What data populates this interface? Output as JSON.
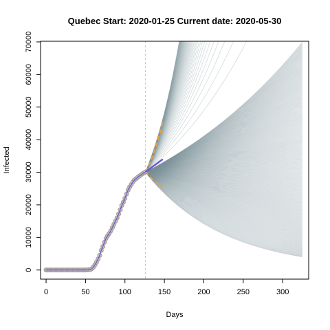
{
  "chart_data": {
    "type": "line",
    "title": "Quebec Start:  2020-01-25   Current date:  2020-05-30",
    "xlabel": "Days",
    "ylabel": "Infected",
    "xlim": [
      -7,
      333
    ],
    "ylim": [
      -2800,
      70200
    ],
    "x_ticks": [
      0,
      50,
      100,
      150,
      200,
      250,
      300
    ],
    "y_ticks": [
      0,
      10000,
      20000,
      30000,
      40000,
      50000,
      60000,
      70000
    ],
    "current_day": 126,
    "grid": false,
    "legend": "none",
    "colors": {
      "observed_fill": "#bfbfbf",
      "observed_stroke": "#a89898",
      "fit_line": "#6a5acd",
      "bound_line": "#f0a030",
      "projection": "#7f949c",
      "current_line": "#c8c8c8"
    },
    "observed": {
      "x": [
        0,
        2,
        4,
        6,
        8,
        10,
        12,
        14,
        16,
        18,
        20,
        22,
        24,
        26,
        28,
        30,
        32,
        34,
        36,
        38,
        40,
        42,
        44,
        46,
        48,
        50,
        52,
        54,
        56,
        58,
        60,
        62,
        64,
        66,
        68,
        70,
        72,
        74,
        76,
        78,
        80,
        82,
        84,
        86,
        88,
        90,
        92,
        94,
        96,
        98,
        100,
        102,
        104,
        106,
        108,
        110,
        112,
        114,
        116,
        118,
        120,
        122,
        124,
        126
      ],
      "y": [
        0,
        0,
        0,
        0,
        0,
        0,
        0,
        0,
        0,
        0,
        0,
        0,
        0,
        0,
        0,
        0,
        0,
        0,
        0,
        0,
        0,
        0,
        0,
        0,
        0,
        10,
        30,
        60,
        120,
        400,
        900,
        1600,
        2400,
        3400,
        4500,
        6000,
        7200,
        8500,
        9700,
        10500,
        11200,
        12000,
        13000,
        14000,
        15000,
        16000,
        17200,
        18500,
        19800,
        20800,
        22000,
        23300,
        24500,
        25500,
        26200,
        27000,
        27600,
        28000,
        28400,
        28800,
        29100,
        29500,
        29800,
        30100
      ]
    },
    "fit": {
      "x": [
        126,
        148
      ],
      "y": [
        30100,
        34000
      ]
    },
    "upper_bound": {
      "x": [
        126,
        130,
        135,
        140,
        145,
        148
      ],
      "y": [
        30100,
        32000,
        35000,
        38500,
        42500,
        46000
      ]
    },
    "lower_bound": {
      "x": [
        126,
        130,
        135,
        140,
        145,
        148
      ],
      "y": [
        30100,
        29000,
        27800,
        26800,
        26000,
        25500
      ]
    },
    "projection": {
      "start": [
        126,
        30000
      ],
      "end_x": 325,
      "count": 340,
      "final_min": 4000,
      "final_max": 70000
    }
  }
}
